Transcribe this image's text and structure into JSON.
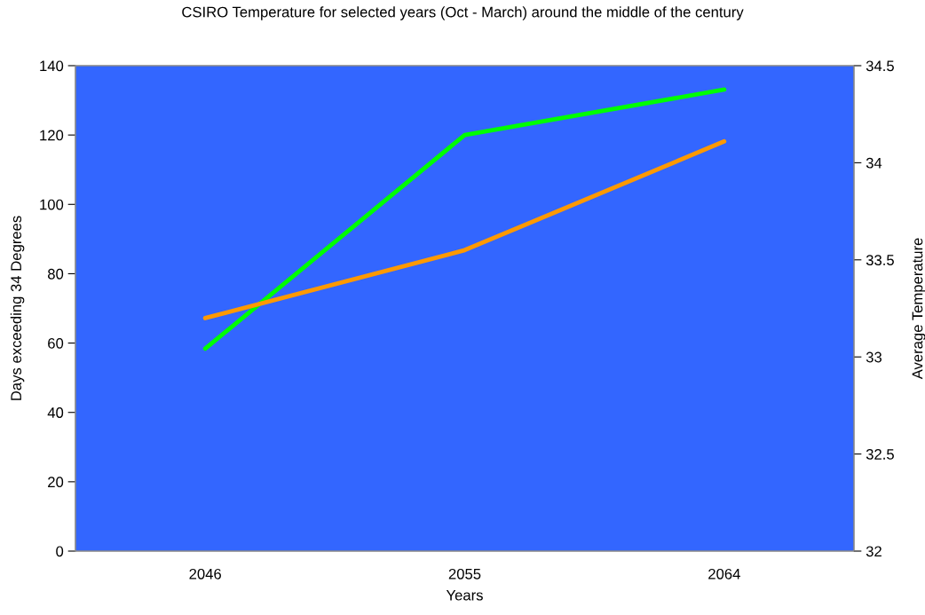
{
  "chart_data": {
    "type": "line",
    "title": "CSIRO Temperature for selected years (Oct - March) around the middle of the century",
    "xlabel": "Years",
    "ylabel": "Days exceeding 34 Degrees",
    "y2label": "Average Temperature",
    "categories": [
      "2046",
      "2055",
      "2064"
    ],
    "series": [
      {
        "color": "#00ff00",
        "values": [
          58.4,
          120,
          133.1
        ]
      },
      {
        "color": "#ff9900",
        "axis": "y2",
        "values": [
          33.2,
          33.55,
          34.11
        ]
      }
    ],
    "ylim": [
      0,
      140
    ],
    "yticks": [
      0,
      20,
      40,
      60,
      80,
      100,
      120,
      140
    ],
    "y2lim": [
      32,
      34.5
    ],
    "y2ticks": [
      32,
      32.5,
      33,
      33.5,
      34,
      34.5
    ],
    "grid": false,
    "marker": "none",
    "line_style": "solid"
  }
}
